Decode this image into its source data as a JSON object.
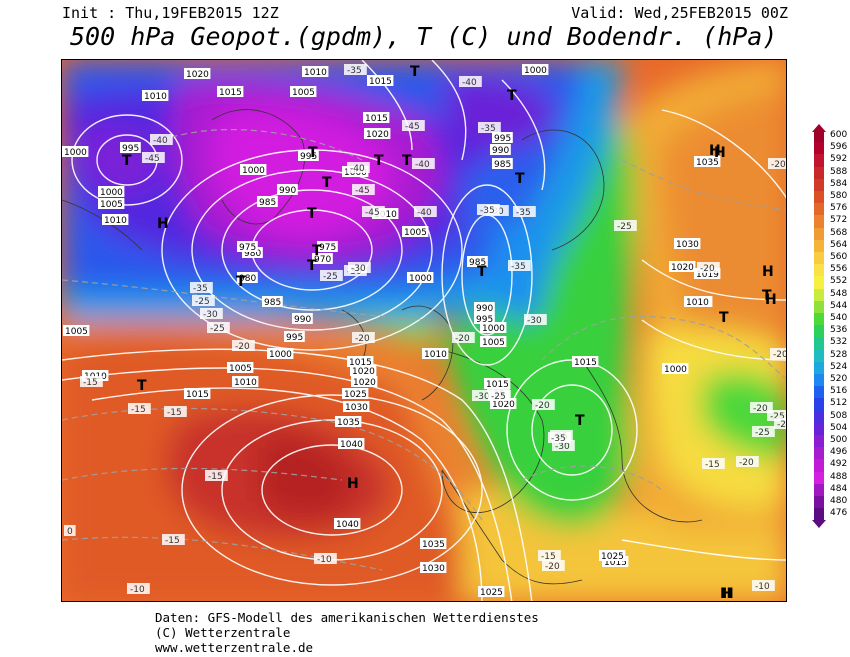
{
  "header": {
    "init": "Init : Thu,19FEB2015 12Z",
    "valid": "Valid: Wed,25FEB2015 00Z",
    "title": "500 hPa Geopot.(gpdm), T (C) und Bodendr. (hPa)"
  },
  "footer": {
    "line1": "Daten: GFS-Modell des amerikanischen Wetterdienstes",
    "line2": "(C) Wetterzentrale",
    "line3": "www.wetterzentrale.de"
  },
  "legend": {
    "values": [
      "600",
      "596",
      "592",
      "588",
      "584",
      "580",
      "576",
      "572",
      "568",
      "564",
      "560",
      "556",
      "552",
      "548",
      "544",
      "540",
      "536",
      "532",
      "528",
      "524",
      "520",
      "516",
      "512",
      "508",
      "504",
      "500",
      "496",
      "492",
      "488",
      "484",
      "480",
      "476"
    ],
    "colors": [
      "#a0002a",
      "#b4002c",
      "#c21430",
      "#c82828",
      "#d23a28",
      "#dc5028",
      "#e4682a",
      "#ec8230",
      "#f09c34",
      "#f4b43a",
      "#f8cc40",
      "#fae246",
      "#f8f040",
      "#c8ec3c",
      "#8ee03a",
      "#4ed83a",
      "#2cd05a",
      "#20c890",
      "#20bcc0",
      "#1ea8e0",
      "#1e88f0",
      "#2060f0",
      "#2a40e8",
      "#4a2ee0",
      "#6a22d8",
      "#8a1ed0",
      "#a81cd0",
      "#c21ad8",
      "#d41ee0",
      "#a018c0",
      "#7a10a0",
      "#5a0c80"
    ]
  },
  "map": {
    "isobar_labels": [
      {
        "t": "1020"
      },
      {
        "t": "1010"
      },
      {
        "t": "1015"
      },
      {
        "t": "1010"
      },
      {
        "t": "1005"
      },
      {
        "t": "1015"
      },
      {
        "t": "1000"
      },
      {
        "t": "995"
      },
      {
        "t": "1000"
      },
      {
        "t": "1005"
      },
      {
        "t": "1010"
      },
      {
        "t": "1000"
      },
      {
        "t": "995"
      },
      {
        "t": "990"
      },
      {
        "t": "985"
      },
      {
        "t": "980"
      },
      {
        "t": "975"
      },
      {
        "t": "970"
      },
      {
        "t": "975"
      },
      {
        "t": "980"
      },
      {
        "t": "985"
      },
      {
        "t": "990"
      },
      {
        "t": "995"
      },
      {
        "t": "1000"
      },
      {
        "t": "1005"
      },
      {
        "t": "1010"
      },
      {
        "t": "1015"
      },
      {
        "t": "1020"
      },
      {
        "t": "1015"
      },
      {
        "t": "1020"
      },
      {
        "t": "1025"
      },
      {
        "t": "1030"
      },
      {
        "t": "1035"
      },
      {
        "t": "1040"
      },
      {
        "t": "1040"
      },
      {
        "t": "1035"
      },
      {
        "t": "1030"
      },
      {
        "t": "1025"
      },
      {
        "t": "1020"
      },
      {
        "t": "1015"
      },
      {
        "t": "1010"
      },
      {
        "t": "1005"
      },
      {
        "t": "1000"
      },
      {
        "t": "995"
      },
      {
        "t": "990"
      },
      {
        "t": "985"
      },
      {
        "t": "1000"
      },
      {
        "t": "995"
      },
      {
        "t": "990"
      },
      {
        "t": "985"
      },
      {
        "t": "1000"
      },
      {
        "t": "1005"
      },
      {
        "t": "1010"
      },
      {
        "t": "1015"
      },
      {
        "t": "1020"
      },
      {
        "t": "1000"
      },
      {
        "t": "1005"
      },
      {
        "t": "1010"
      },
      {
        "t": "1015"
      },
      {
        "t": "1025"
      },
      {
        "t": "1030"
      },
      {
        "t": "1020"
      },
      {
        "t": "1019"
      },
      {
        "t": "1015"
      },
      {
        "t": "1010"
      },
      {
        "t": "1000"
      },
      {
        "t": "1015"
      },
      {
        "t": "1035"
      }
    ],
    "temp_labels": [
      {
        "t": "-40"
      },
      {
        "t": "-45"
      },
      {
        "t": "-35"
      },
      {
        "t": "-40"
      },
      {
        "t": "-35"
      },
      {
        "t": "-30"
      },
      {
        "t": "-40"
      },
      {
        "t": "-45"
      },
      {
        "t": "-40"
      },
      {
        "t": "-45"
      },
      {
        "t": "-40"
      },
      {
        "t": "-45"
      },
      {
        "t": "-35"
      },
      {
        "t": "-30"
      },
      {
        "t": "-25"
      },
      {
        "t": "-20"
      },
      {
        "t": "-25"
      },
      {
        "t": "-30"
      },
      {
        "t": "-35"
      },
      {
        "t": "-30"
      },
      {
        "t": "-25"
      },
      {
        "t": "-20"
      },
      {
        "t": "-15"
      },
      {
        "t": "-15"
      },
      {
        "t": "-15"
      },
      {
        "t": "-10"
      },
      {
        "t": "-15"
      },
      {
        "t": "-15"
      },
      {
        "t": "-10"
      },
      {
        "t": "-20"
      },
      {
        "t": "-25"
      },
      {
        "t": "-30"
      },
      {
        "t": "-25"
      },
      {
        "t": "-20"
      },
      {
        "t": "-15"
      },
      {
        "t": "-20"
      },
      {
        "t": "-25"
      },
      {
        "t": "-30"
      },
      {
        "t": "-35"
      },
      {
        "t": "-25"
      },
      {
        "t": "-20"
      },
      {
        "t": "-20"
      },
      {
        "t": "-15"
      },
      {
        "t": "-10"
      },
      {
        "t": "-20"
      },
      {
        "t": "-25"
      },
      {
        "t": "-15"
      },
      {
        "t": "-20"
      },
      {
        "t": "-25"
      },
      {
        "t": "-25"
      },
      {
        "t": "-20"
      },
      {
        "t": "-35"
      },
      {
        "t": "-35"
      },
      {
        "t": "-30"
      },
      {
        "t": "0"
      }
    ],
    "centers": [
      {
        "t": "T"
      },
      {
        "t": "T"
      },
      {
        "t": "T"
      },
      {
        "t": "T"
      },
      {
        "t": "T"
      },
      {
        "t": "T"
      },
      {
        "t": "T"
      },
      {
        "t": "T"
      },
      {
        "t": "T"
      },
      {
        "t": "T"
      },
      {
        "t": "T"
      },
      {
        "t": "T"
      },
      {
        "t": "T"
      },
      {
        "t": "T"
      },
      {
        "t": "H"
      },
      {
        "t": "H"
      },
      {
        "t": "H"
      },
      {
        "t": "H"
      },
      {
        "t": "H"
      },
      {
        "t": "H"
      },
      {
        "t": "H"
      },
      {
        "t": "H"
      },
      {
        "t": "T"
      },
      {
        "t": "T"
      },
      {
        "t": "T"
      }
    ]
  }
}
